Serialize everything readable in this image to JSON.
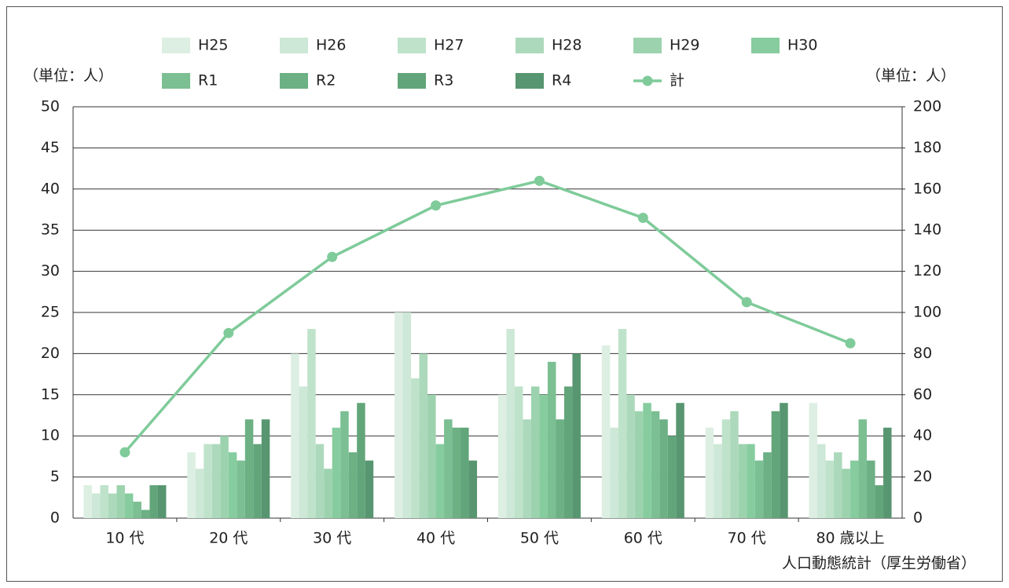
{
  "chart_data": {
    "type": "bar",
    "y_label": "（単位：人）",
    "y2_label": "（単位：人）",
    "source": "人口動態統計（厚生労働省）",
    "categories": [
      "10 代",
      "20 代",
      "30 代",
      "40 代",
      "50 代",
      "60 代",
      "70 代",
      "80 歳以上"
    ],
    "series": [
      {
        "name": "H25",
        "color": "#dcefe2",
        "values": [
          4,
          8,
          20,
          25,
          15,
          21,
          11,
          14
        ]
      },
      {
        "name": "H26",
        "color": "#cde8d6",
        "values": [
          3,
          6,
          16,
          25,
          23,
          11,
          9,
          9
        ]
      },
      {
        "name": "H27",
        "color": "#bfe2cb",
        "values": [
          4,
          9,
          23,
          17,
          16,
          23,
          12,
          7
        ]
      },
      {
        "name": "H28",
        "color": "#acd9bb",
        "values": [
          3,
          9,
          9,
          20,
          12,
          15,
          13,
          8
        ]
      },
      {
        "name": "H29",
        "color": "#9cd3ae",
        "values": [
          4,
          10,
          6,
          15,
          16,
          13,
          9,
          6
        ]
      },
      {
        "name": "H30",
        "color": "#86cc9f",
        "values": [
          3,
          8,
          11,
          9,
          15,
          14,
          9,
          7
        ]
      },
      {
        "name": "R1",
        "color": "#7bbf92",
        "values": [
          2,
          7,
          13,
          12,
          19,
          13,
          7,
          12
        ]
      },
      {
        "name": "R2",
        "color": "#6cb084",
        "values": [
          1,
          12,
          8,
          11,
          12,
          12,
          8,
          7
        ]
      },
      {
        "name": "R3",
        "color": "#62a57a",
        "values": [
          4,
          9,
          14,
          11,
          16,
          10,
          13,
          4
        ]
      },
      {
        "name": "R4",
        "color": "#579670",
        "values": [
          4,
          12,
          7,
          7,
          20,
          14,
          14,
          11
        ]
      },
      {
        "name": "計",
        "color": "#7fcb9a",
        "type": "line",
        "axis": "y2",
        "values": [
          32,
          90,
          127,
          152,
          164,
          146,
          105,
          85
        ]
      }
    ],
    "ylim": [
      0,
      50
    ],
    "yticks": [
      0,
      5,
      10,
      15,
      20,
      25,
      30,
      35,
      40,
      45,
      50
    ],
    "y2lim": [
      0,
      200
    ],
    "y2ticks": [
      0,
      20,
      40,
      60,
      80,
      100,
      120,
      140,
      160,
      180,
      200
    ],
    "grid": true
  }
}
